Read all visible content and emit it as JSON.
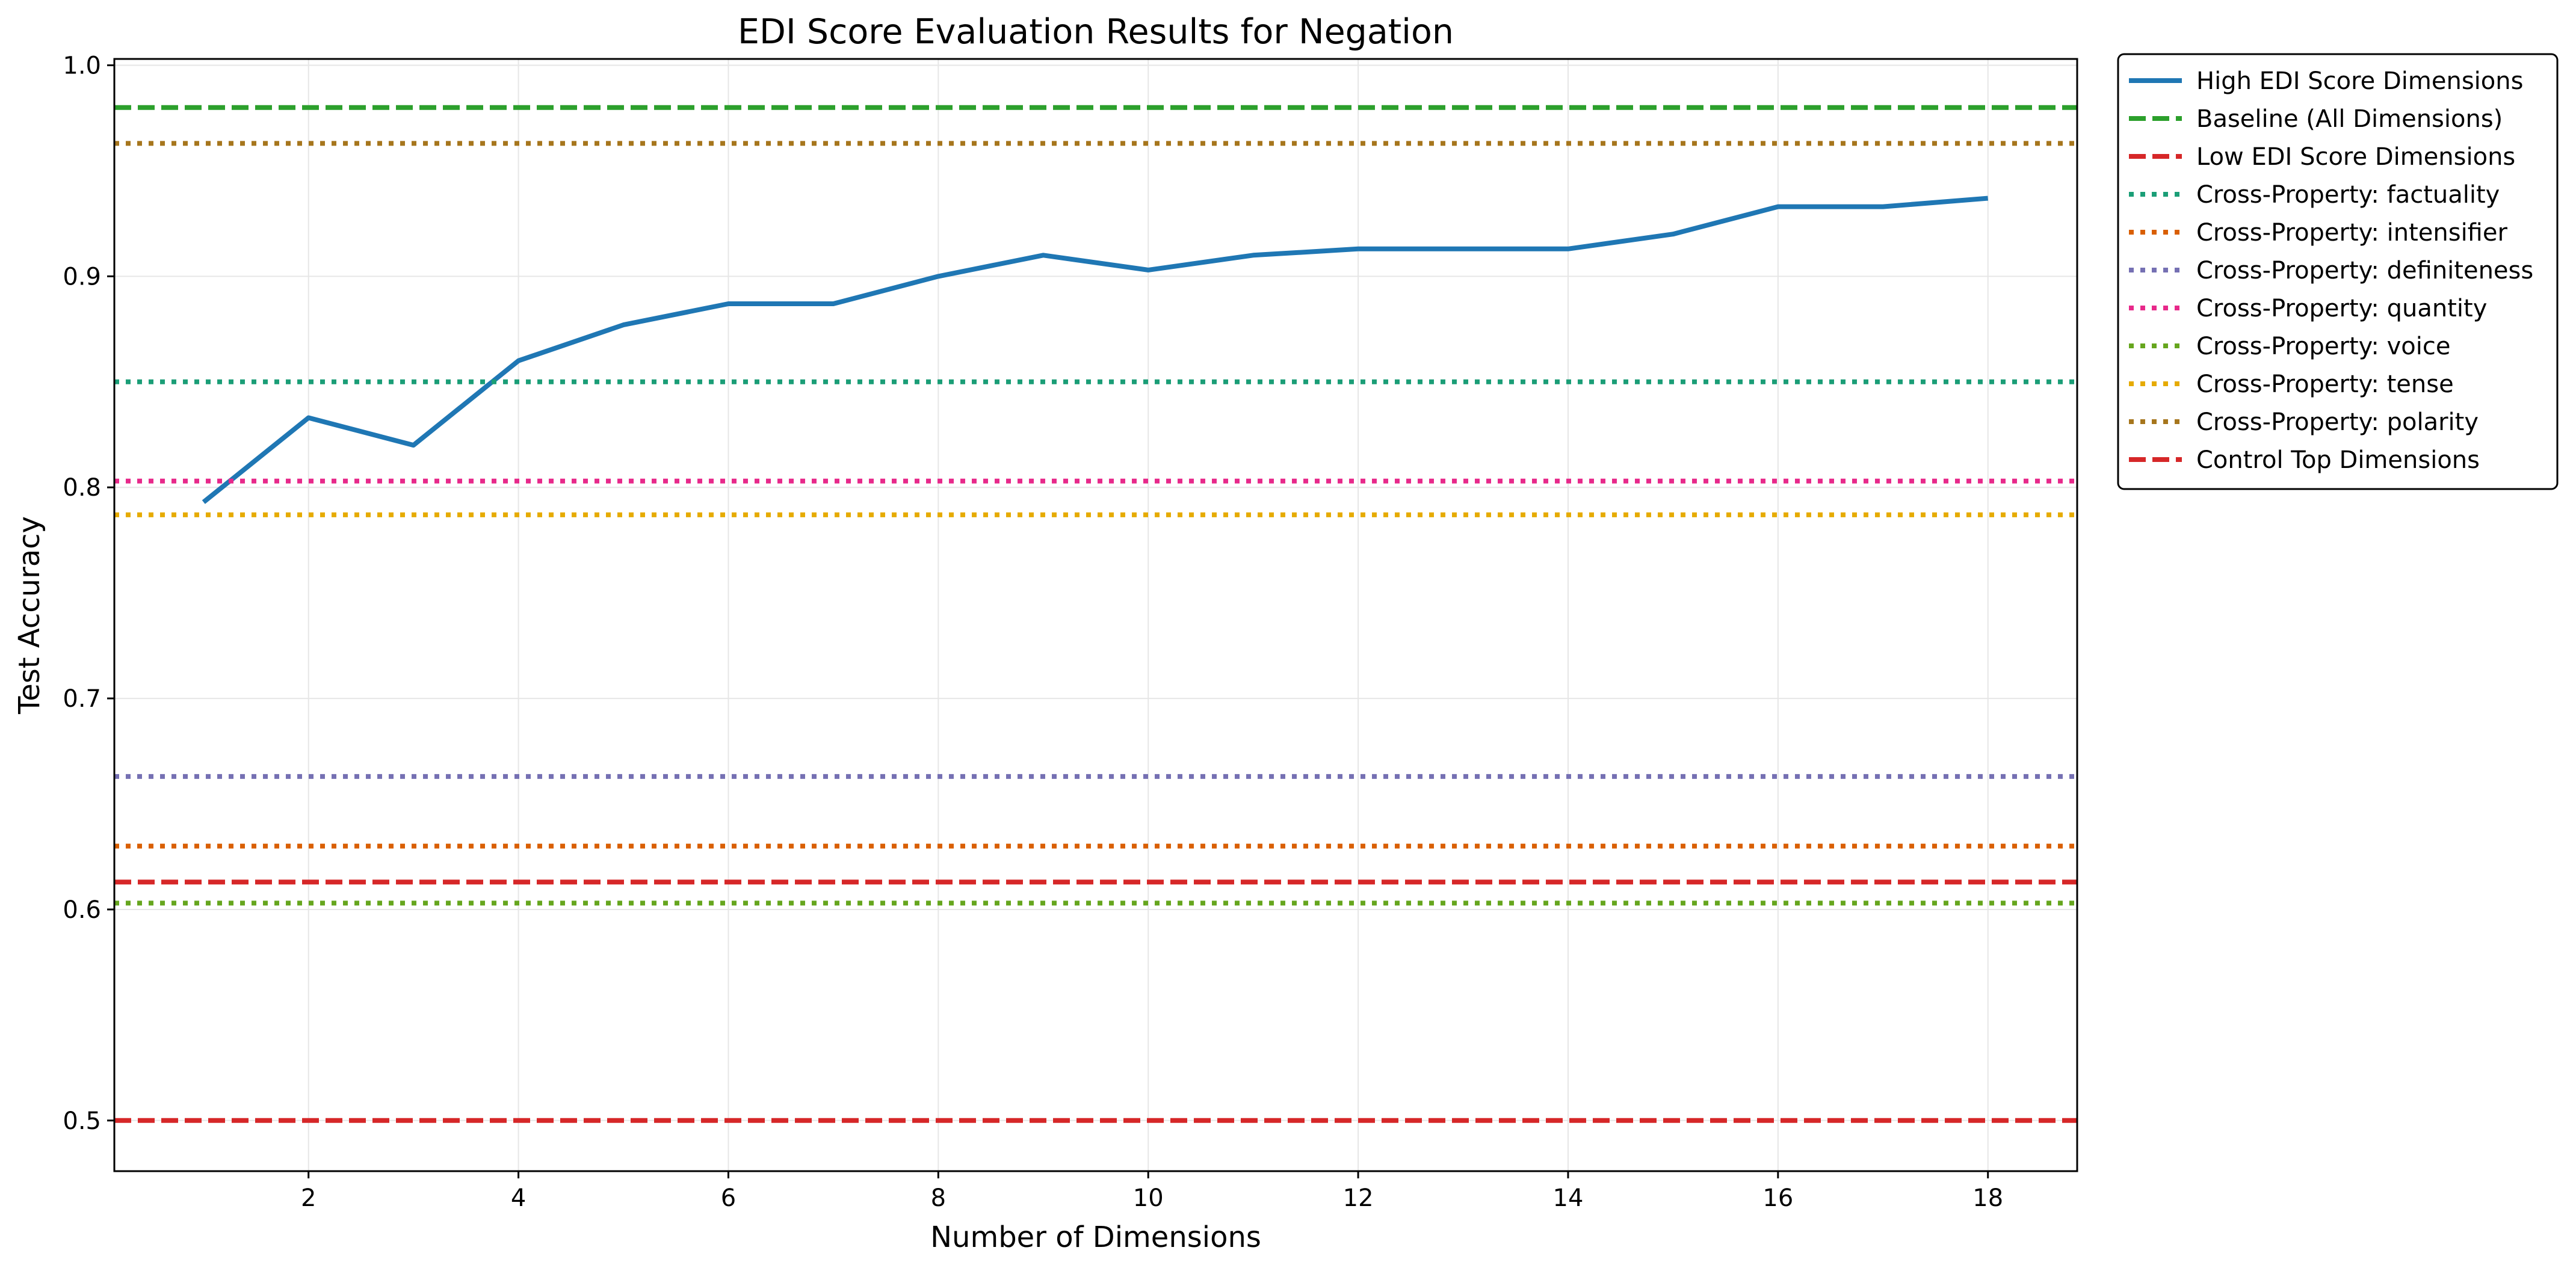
{
  "chart_data": {
    "type": "line",
    "title": "EDI Score Evaluation Results for Negation",
    "xlabel": "Number of Dimensions",
    "ylabel": "Test Accuracy",
    "xlim": [
      0.15,
      18.85
    ],
    "ylim": [
      0.476,
      1.003
    ],
    "xticks": [
      2,
      4,
      6,
      8,
      10,
      12,
      14,
      16,
      18
    ],
    "yticks": [
      0.5,
      0.6,
      0.7,
      0.8,
      0.9,
      1.0
    ],
    "ytick_labels": [
      "0.5",
      "0.6",
      "0.7",
      "0.8",
      "0.9",
      "1.0"
    ],
    "grid": true,
    "legend_position": "outside upper right",
    "series": [
      {
        "name": "High EDI Score Dimensions",
        "kind": "line",
        "color": "#1f77b4",
        "dash": "solid",
        "x": [
          1,
          2,
          3,
          4,
          5,
          6,
          7,
          8,
          9,
          10,
          11,
          12,
          13,
          14,
          15,
          16,
          17,
          18
        ],
        "y": [
          0.793,
          0.833,
          0.82,
          0.86,
          0.877,
          0.887,
          0.887,
          0.9,
          0.91,
          0.903,
          0.91,
          0.913,
          0.913,
          0.913,
          0.92,
          0.933,
          0.933,
          0.937
        ]
      },
      {
        "name": "Baseline (All Dimensions)",
        "kind": "hline",
        "y": 0.98,
        "color": "#2ca02c",
        "dash": "dashed"
      },
      {
        "name": "Low EDI Score Dimensions",
        "kind": "hline",
        "y": 0.5,
        "color": "#d62728",
        "dash": "dashed"
      },
      {
        "name": "Cross-Property: factuality",
        "kind": "hline",
        "y": 0.85,
        "color": "#1b9e77",
        "dash": "dotted"
      },
      {
        "name": "Cross-Property: intensifier",
        "kind": "hline",
        "y": 0.63,
        "color": "#d95f02",
        "dash": "dotted"
      },
      {
        "name": "Cross-Property: definiteness",
        "kind": "hline",
        "y": 0.663,
        "color": "#7570b3",
        "dash": "dotted"
      },
      {
        "name": "Cross-Property: quantity",
        "kind": "hline",
        "y": 0.803,
        "color": "#e7298a",
        "dash": "dotted"
      },
      {
        "name": "Cross-Property: voice",
        "kind": "hline",
        "y": 0.603,
        "color": "#66a61e",
        "dash": "dotted"
      },
      {
        "name": "Cross-Property: tense",
        "kind": "hline",
        "y": 0.787,
        "color": "#e6ab02",
        "dash": "dotted"
      },
      {
        "name": "Cross-Property: polarity",
        "kind": "hline",
        "y": 0.963,
        "color": "#a6761d",
        "dash": "dotted"
      },
      {
        "name": "Control Top Dimensions",
        "kind": "hline",
        "y": 0.613,
        "color": "#d62728",
        "dash": "dashed"
      }
    ]
  }
}
